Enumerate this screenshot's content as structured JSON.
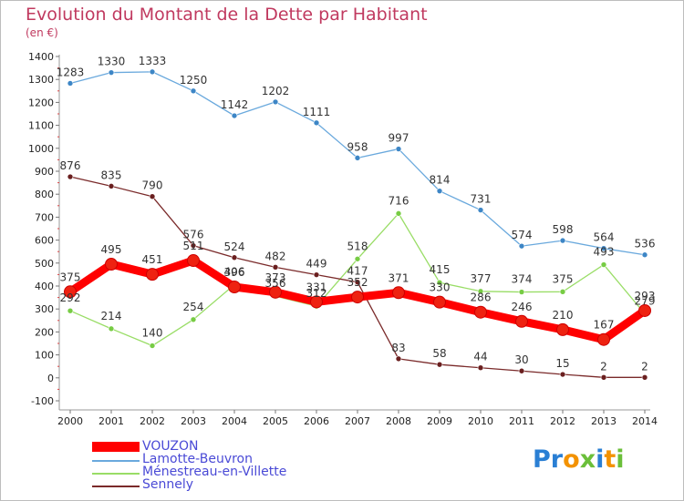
{
  "chart_data": {
    "type": "line",
    "title": "Evolution du Montant de la Dette par Habitant",
    "ylabel": "(en €)",
    "x": [
      "2000",
      "2001",
      "2002",
      "2003",
      "2004",
      "2005",
      "2006",
      "2007",
      "2008",
      "2009",
      "2010",
      "2011",
      "2012",
      "2013",
      "2014"
    ],
    "yticks": [
      -100,
      0,
      100,
      200,
      300,
      400,
      500,
      600,
      700,
      800,
      900,
      1000,
      1100,
      1200,
      1300,
      1400
    ],
    "ylim": [
      -100,
      1400
    ],
    "grid": false,
    "legend_position": "bottom-left",
    "series": [
      {
        "name": "VOUZON",
        "color": "#ff0000",
        "marker": "#ee2211",
        "values": [
          375,
          495,
          451,
          511,
          396,
          373,
          331,
          352,
          371,
          330,
          286,
          246,
          210,
          167,
          293
        ]
      },
      {
        "name": "Lamotte-Beuvron",
        "color": "#6aa9dd",
        "marker": "#3d86c6",
        "values": [
          1283,
          1330,
          1333,
          1250,
          1142,
          1202,
          1111,
          958,
          997,
          814,
          731,
          574,
          598,
          564,
          536
        ]
      },
      {
        "name": "Ménestreau-en-Villette",
        "color": "#99dd66",
        "marker": "#77cc44",
        "values": [
          292,
          214,
          140,
          254,
          406,
          356,
          312,
          518,
          716,
          415,
          377,
          374,
          375,
          493,
          279
        ]
      },
      {
        "name": "Sennely",
        "color": "#7a2a2a",
        "marker": "#6a1f1f",
        "values": [
          876,
          835,
          790,
          576,
          524,
          482,
          449,
          417,
          83,
          58,
          44,
          30,
          15,
          2,
          2
        ]
      }
    ]
  },
  "logo": {
    "text": "Proxiti"
  }
}
